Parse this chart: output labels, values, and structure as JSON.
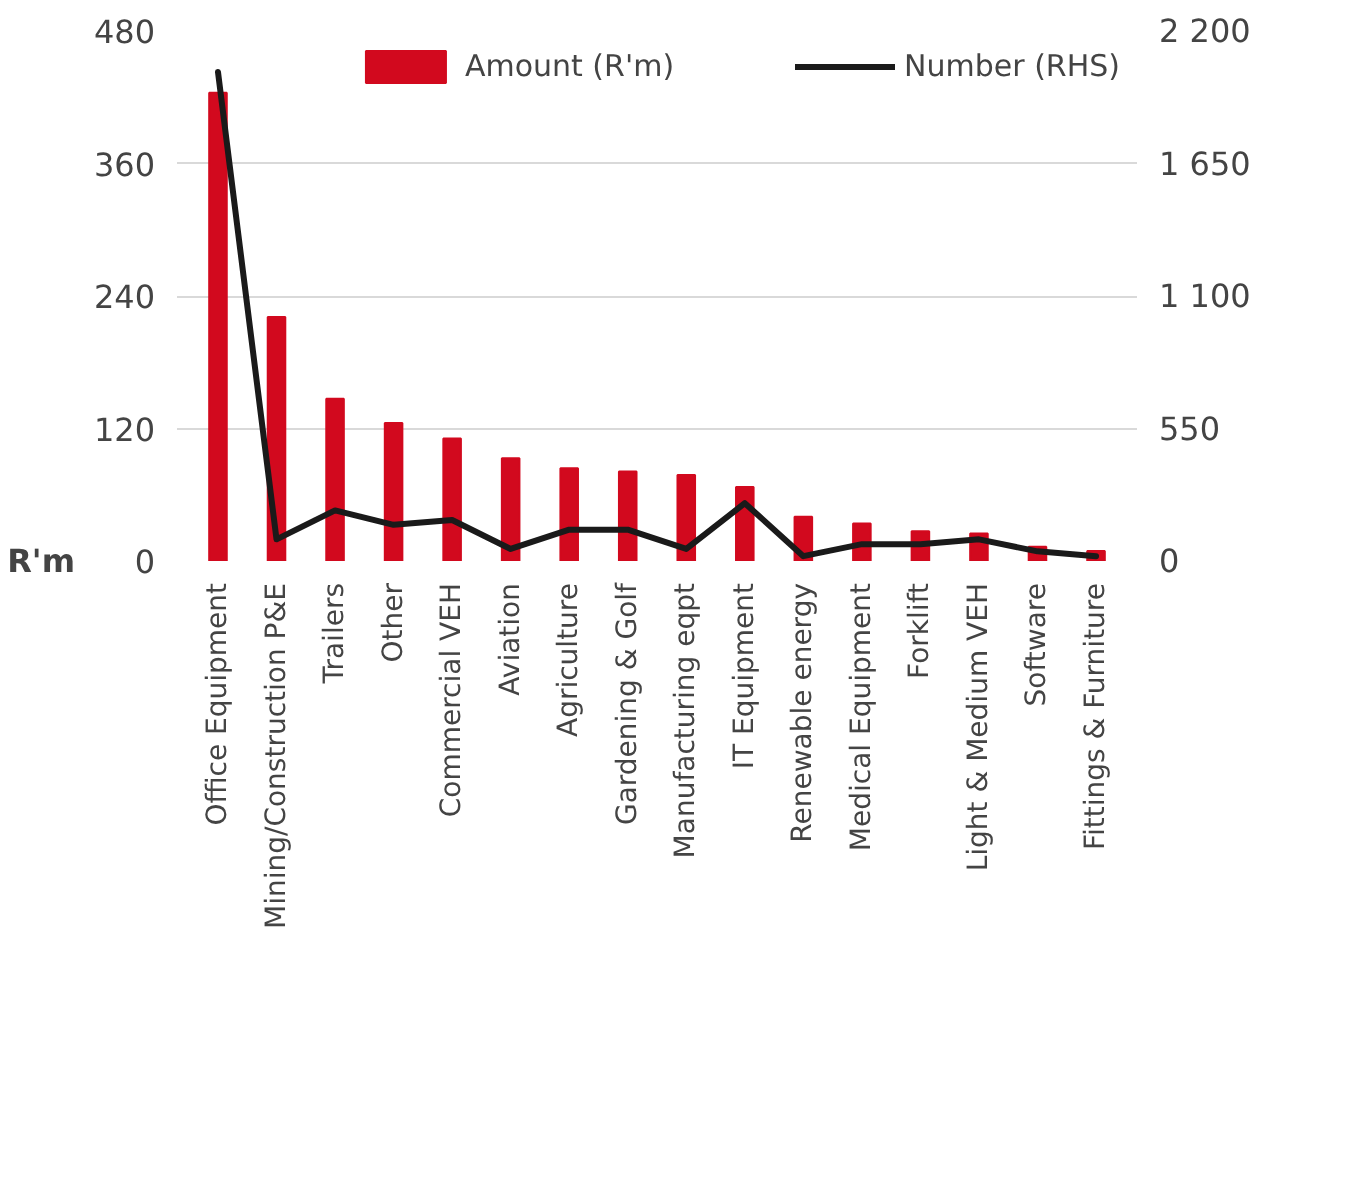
{
  "chart_data": {
    "type": "bar",
    "ylabel": "R'm",
    "categories": [
      "Office Equipment",
      "Mining/Construction P&E",
      "Trailers",
      "Other",
      "Commercial VEH",
      "Aviation",
      "Agriculture",
      "Gardening & Golf",
      "Manufacturing eqpt",
      "IT Equipment",
      "Renewable energy",
      "Medical Equipment",
      "Forklift",
      "Light & Medium VEH",
      "Software",
      "Fittings & Furniture"
    ],
    "series": [
      {
        "name": "Amount (R'm)",
        "color": "#d2091e",
        "values": [
          424,
          221,
          147,
          125,
          111,
          93,
          84,
          81,
          78,
          67,
          40,
          34,
          27,
          25,
          13,
          9
        ]
      },
      {
        "name": "Number (RHS)",
        "type": "line",
        "axis": "y2",
        "color": "#1a1a1a",
        "values": [
          2030,
          90,
          210,
          150,
          170,
          50,
          130,
          130,
          50,
          240,
          20,
          70,
          70,
          90,
          40,
          20
        ]
      }
    ],
    "ylim": [
      0,
      480
    ],
    "yticks": [
      0,
      120,
      240,
      360,
      480
    ],
    "y2lim": [
      0,
      2200
    ],
    "y2ticks": [
      0,
      {
        "value": 550,
        "label": "550"
      },
      {
        "value": 1100,
        "label": "1 100"
      },
      {
        "value": 1650,
        "label": "1 650"
      },
      {
        "value": 2200,
        "label": "2 200"
      }
    ],
    "grid": "y",
    "legend": "top right",
    "line_style": "solid"
  }
}
